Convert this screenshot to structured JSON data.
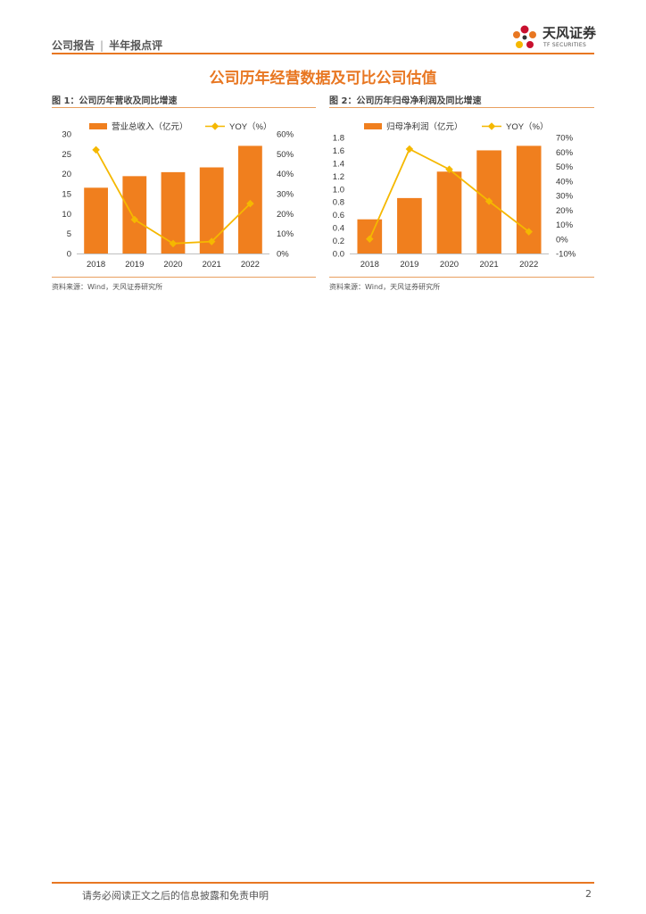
{
  "header": {
    "doc_type": "公司报告",
    "report_type": "半年报点评",
    "brand": "天风证券",
    "brand_en": "TF SECURITIES"
  },
  "section_title": "公司历年经营数据及可比公司估值",
  "figures": [
    {
      "title": "图 1：公司历年营收及同比增速",
      "source": "资料来源：Wind，天风证券研究所"
    },
    {
      "title": "图 2：公司历年归母净利润及同比增速",
      "source": "资料来源：Wind，天风证券研究所"
    }
  ],
  "colors": {
    "bar": "#f07f1e",
    "line": "#f5b800",
    "accent": "#e87722"
  },
  "chart_data": [
    {
      "type": "bar",
      "categories": [
        "2018",
        "2019",
        "2020",
        "2021",
        "2022"
      ],
      "series": [
        {
          "name": "营业总收入（亿元）",
          "type": "bar",
          "axis": "left",
          "values": [
            16.5,
            19.4,
            20.4,
            21.6,
            27.0
          ]
        },
        {
          "name": "YOY（%）",
          "type": "line",
          "axis": "right",
          "values": [
            52,
            17,
            5,
            6,
            25
          ]
        }
      ],
      "ylim": [
        0,
        30
      ],
      "yticks": [
        "0",
        "5",
        "10",
        "15",
        "20",
        "25",
        "30"
      ],
      "y2lim": [
        0,
        60
      ],
      "y2ticks": [
        "0%",
        "10%",
        "20%",
        "30%",
        "40%",
        "50%",
        "60%"
      ],
      "legend": "top",
      "grid": false
    },
    {
      "type": "bar",
      "categories": [
        "2018",
        "2019",
        "2020",
        "2021",
        "2022"
      ],
      "series": [
        {
          "name": "归母净利润（亿元）",
          "type": "bar",
          "axis": "left",
          "values": [
            0.53,
            0.86,
            1.27,
            1.6,
            1.67
          ]
        },
        {
          "name": "YOY（%）",
          "type": "line",
          "axis": "right",
          "values": [
            0,
            62,
            48,
            26,
            5
          ]
        }
      ],
      "ylim": [
        0,
        1.8
      ],
      "yticks": [
        "0.0",
        "0.2",
        "0.4",
        "0.6",
        "0.8",
        "1.0",
        "1.2",
        "1.4",
        "1.6",
        "1.8"
      ],
      "y2lim": [
        -10,
        70
      ],
      "y2ticks": [
        "-10%",
        "0%",
        "10%",
        "20%",
        "30%",
        "40%",
        "50%",
        "60%",
        "70%"
      ],
      "legend": "top",
      "grid": false
    }
  ],
  "footer": {
    "disclaimer": "请务必阅读正文之后的信息披露和免责申明",
    "page": "2"
  }
}
